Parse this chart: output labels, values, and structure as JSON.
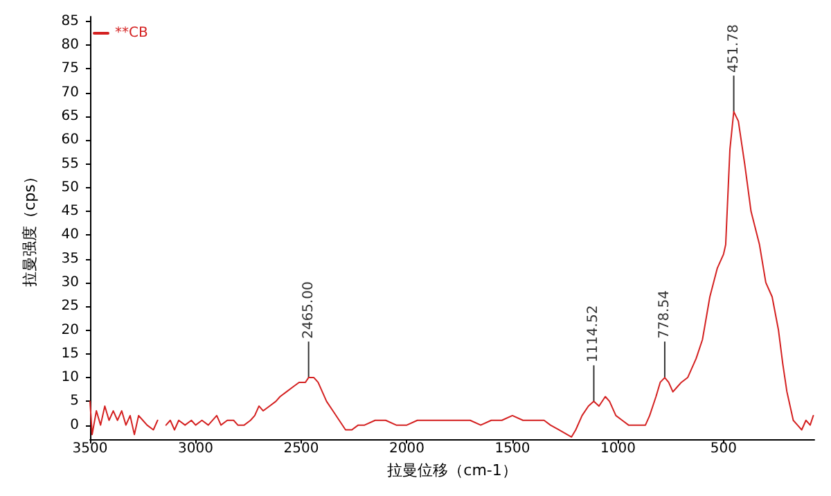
{
  "chart_data": {
    "type": "line",
    "xlabel": "拉曼位移（cm-1）",
    "ylabel": "拉曼强度（cps）",
    "xlim": [
      3500,
      70
    ],
    "xticks": [
      3500,
      3000,
      2500,
      2000,
      1500,
      1000,
      500
    ],
    "ylim": [
      -3,
      86
    ],
    "yticks": [
      0,
      5,
      10,
      15,
      20,
      25,
      30,
      35,
      40,
      45,
      50,
      55,
      60,
      65,
      70,
      75,
      80,
      85
    ],
    "grid": false,
    "legend": "top left",
    "marker": "none",
    "line_style": "solid",
    "annotations": [
      {
        "text": "2465.00",
        "x": 2465,
        "y": 10
      },
      {
        "text": "1114.52",
        "x": 1114.52,
        "y": 5
      },
      {
        "text": "778.54",
        "x": 778.54,
        "y": 10
      },
      {
        "text": "451.78",
        "x": 451.78,
        "y": 66
      }
    ],
    "series": [
      {
        "name": "**CB",
        "color": "#d42020",
        "x": [
          3500,
          3490,
          3470,
          3450,
          3430,
          3410,
          3390,
          3370,
          3350,
          3330,
          3310,
          3290,
          3270,
          3250,
          3230,
          3200,
          3180,
          3160,
          3140,
          3120,
          3100,
          3080,
          3050,
          3020,
          3000,
          2970,
          2940,
          2900,
          2880,
          2850,
          2820,
          2800,
          2770,
          2740,
          2720,
          2700,
          2680,
          2650,
          2620,
          2600,
          2570,
          2540,
          2510,
          2480,
          2465,
          2440,
          2420,
          2400,
          2380,
          2350,
          2320,
          2290,
          2260,
          2230,
          2200,
          2150,
          2100,
          2050,
          2000,
          1950,
          1900,
          1850,
          1800,
          1750,
          1700,
          1650,
          1600,
          1550,
          1500,
          1450,
          1400,
          1350,
          1320,
          1280,
          1240,
          1220,
          1200,
          1170,
          1140,
          1114.52,
          1090,
          1060,
          1040,
          1010,
          980,
          950,
          900,
          870,
          850,
          820,
          800,
          778.54,
          760,
          740,
          720,
          700,
          670,
          630,
          600,
          565,
          530,
          500,
          490,
          470,
          451.78,
          430,
          400,
          370,
          330,
          300,
          270,
          240,
          220,
          200,
          180,
          170,
          150,
          130,
          110,
          90,
          75
        ],
        "values": [
          5,
          -2,
          3,
          0,
          4,
          1,
          3,
          1,
          3,
          0,
          2,
          -2,
          2,
          1,
          0,
          -1,
          1,
          null,
          0,
          1,
          -1,
          1,
          0,
          1,
          0,
          1,
          0,
          2,
          0,
          1,
          1,
          0,
          0,
          1,
          2,
          4,
          3,
          4,
          5,
          6,
          7,
          8,
          9,
          9,
          10,
          10,
          9,
          7,
          5,
          3,
          1,
          -1,
          -1,
          0,
          0,
          1,
          1,
          0,
          0,
          1,
          1,
          1,
          1,
          1,
          1,
          0,
          1,
          1,
          2,
          1,
          1,
          1,
          0,
          -1,
          -2,
          -2.5,
          -1,
          2,
          4,
          5,
          4,
          6,
          5,
          2,
          1,
          0,
          0,
          0,
          2,
          6,
          9,
          10,
          9,
          7,
          8,
          9,
          10,
          14,
          18,
          27,
          33,
          36,
          38,
          58,
          66,
          64,
          55,
          45,
          38,
          30,
          27,
          20,
          13,
          7,
          3,
          1,
          0,
          -1,
          1,
          0,
          2
        ]
      }
    ]
  }
}
